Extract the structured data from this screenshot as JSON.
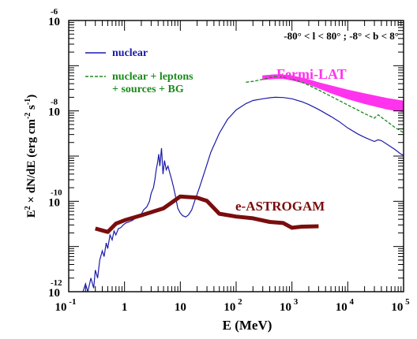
{
  "chart_data": {
    "type": "line",
    "xscale": "log",
    "yscale": "log",
    "xlim": [
      0.1,
      100000
    ],
    "ylim": [
      1e-12,
      1e-06
    ],
    "xlabel": "E (MeV)",
    "ylabel_parts": {
      "e": "E",
      "e_exp": "2",
      "mid": " × dN/dE  (erg cm",
      "exp1": "-2",
      "mid2": " s",
      "exp2": "-1",
      "close": ")"
    },
    "region_label": "-80° < l < 80° ; -8° < b < 8°",
    "x_ticks": [
      {
        "value": 0.1,
        "base": "10",
        "exp": "-1"
      },
      {
        "value": 1,
        "base": "1",
        "exp": ""
      },
      {
        "value": 10,
        "base": "10",
        "exp": ""
      },
      {
        "value": 100,
        "base": "10",
        "exp": "2"
      },
      {
        "value": 1000,
        "base": "10",
        "exp": "3"
      },
      {
        "value": 10000,
        "base": "10",
        "exp": "4"
      },
      {
        "value": 100000,
        "base": "10",
        "exp": "5"
      }
    ],
    "y_ticks": [
      {
        "value": 1e-12,
        "base": "10",
        "exp": "-12"
      },
      {
        "value": 1e-10,
        "base": "10",
        "exp": "-10"
      },
      {
        "value": 1e-08,
        "base": "10",
        "exp": "-8"
      },
      {
        "value": 1e-06,
        "base": "10",
        "exp": "-6"
      }
    ],
    "legend": [
      {
        "name": "nuclear",
        "color": "#1a1aaa",
        "style": "solid"
      },
      {
        "name_lines": [
          "nuclear + leptons",
          "+ sources + BG"
        ],
        "color": "#1a8a1a",
        "style": "dashed"
      }
    ],
    "series": [
      {
        "name": "nuclear",
        "color": "#1a1aaa",
        "points": [
          [
            0.18,
            1e-12
          ],
          [
            0.2,
            1.5e-12
          ],
          [
            0.22,
            1e-12
          ],
          [
            0.25,
            2e-12
          ],
          [
            0.28,
            1.2e-12
          ],
          [
            0.3,
            3e-12
          ],
          [
            0.33,
            2e-12
          ],
          [
            0.36,
            5e-12
          ],
          [
            0.4,
            8e-12
          ],
          [
            0.43,
            6e-12
          ],
          [
            0.47,
            1.2e-11
          ],
          [
            0.5,
            9e-12
          ],
          [
            0.55,
            1.8e-11
          ],
          [
            0.6,
            1.4e-11
          ],
          [
            0.65,
            2.2e-11
          ],
          [
            0.7,
            1.8e-11
          ],
          [
            0.78,
            2.5e-11
          ],
          [
            0.85,
            2.6e-11
          ],
          [
            0.95,
            3e-11
          ],
          [
            1.05,
            3.3e-11
          ],
          [
            1.2,
            3.5e-11
          ],
          [
            1.4,
            3.8e-11
          ],
          [
            1.6,
            4.3e-11
          ],
          [
            1.8,
            5e-11
          ],
          [
            2.0,
            5.2e-11
          ],
          [
            2.2,
            6.5e-11
          ],
          [
            2.5,
            7.5e-11
          ],
          [
            2.8,
            1e-10
          ],
          [
            3.0,
            1.5e-10
          ],
          [
            3.3,
            2e-10
          ],
          [
            3.5,
            3e-10
          ],
          [
            3.7,
            5e-10
          ],
          [
            3.9,
            7e-10
          ],
          [
            4.1,
            1.1e-09
          ],
          [
            4.3,
            6e-10
          ],
          [
            4.6,
            1.5e-09
          ],
          [
            4.9,
            4e-10
          ],
          [
            5.2,
            8e-10
          ],
          [
            5.6,
            5e-10
          ],
          [
            6.0,
            6e-10
          ],
          [
            6.4,
            4.5e-10
          ],
          [
            7.0,
            3e-10
          ],
          [
            7.6,
            2e-10
          ],
          [
            8.3,
            1.2e-10
          ],
          [
            9.0,
            7e-11
          ],
          [
            10,
            5.5e-11
          ],
          [
            11,
            4.8e-11
          ],
          [
            12.5,
            4.5e-11
          ],
          [
            14,
            5e-11
          ],
          [
            16,
            6.5e-11
          ],
          [
            18,
            1e-10
          ],
          [
            22,
            2e-10
          ],
          [
            28,
            5e-10
          ],
          [
            35,
            1.2e-09
          ],
          [
            50,
            3.2e-09
          ],
          [
            70,
            6.5e-09
          ],
          [
            100,
            1.05e-08
          ],
          [
            150,
            1.45e-08
          ],
          [
            200,
            1.7e-08
          ],
          [
            300,
            1.85e-08
          ],
          [
            400,
            1.95e-08
          ],
          [
            500,
            2e-08
          ],
          [
            700,
            1.98e-08
          ],
          [
            1000,
            1.85e-08
          ],
          [
            1500,
            1.6e-08
          ],
          [
            2000,
            1.38e-08
          ],
          [
            3000,
            1.08e-08
          ],
          [
            5000,
            7.5e-09
          ],
          [
            7000,
            5.8e-09
          ],
          [
            10000,
            4.2e-09
          ],
          [
            15000,
            3.1e-09
          ],
          [
            20000,
            2.6e-09
          ],
          [
            30000,
            2.1e-09
          ],
          [
            35000,
            2.3e-09
          ],
          [
            40000,
            2.2e-09
          ],
          [
            50000,
            1.85e-09
          ],
          [
            70000,
            1.4e-09
          ],
          [
            90000,
            1.1e-09
          ],
          [
            100000,
            1.05e-09
          ]
        ]
      },
      {
        "name": "nuclear + leptons + sources + BG",
        "color": "#1a8a1a",
        "points": [
          [
            150,
            4.3e-08
          ],
          [
            200,
            4.5e-08
          ],
          [
            300,
            5e-08
          ],
          [
            400,
            5.5e-08
          ],
          [
            500,
            5.7e-08
          ],
          [
            700,
            5.6e-08
          ],
          [
            1000,
            5.1e-08
          ],
          [
            1500,
            4.3e-08
          ],
          [
            2000,
            3.7e-08
          ],
          [
            3000,
            2.9e-08
          ],
          [
            5000,
            2.1e-08
          ],
          [
            7000,
            1.7e-08
          ],
          [
            10000,
            1.35e-08
          ],
          [
            15000,
            1.05e-08
          ],
          [
            20000,
            8.7e-09
          ],
          [
            30000,
            6.9e-09
          ],
          [
            35000,
            8.2e-09
          ],
          [
            40000,
            7.2e-09
          ],
          [
            50000,
            5.9e-09
          ],
          [
            70000,
            4.3e-09
          ],
          [
            100000,
            3.3e-09
          ]
        ]
      },
      {
        "name": "e-ASTROGAM",
        "color": "#7a0d0d",
        "points": [
          [
            0.3,
            2.5e-11
          ],
          [
            0.5,
            2.1e-11
          ],
          [
            0.7,
            3.2e-11
          ],
          [
            1,
            3.8e-11
          ],
          [
            2,
            4.9e-11
          ],
          [
            5,
            7e-11
          ],
          [
            10,
            1.28e-10
          ],
          [
            20,
            1.2e-10
          ],
          [
            30,
            1.02e-10
          ],
          [
            50,
            5.3e-11
          ],
          [
            100,
            4.6e-11
          ],
          [
            200,
            4.2e-11
          ],
          [
            400,
            3.5e-11
          ],
          [
            700,
            3.3e-11
          ],
          [
            1000,
            2.6e-11
          ],
          [
            1500,
            2.75e-11
          ],
          [
            3000,
            2.8e-11
          ]
        ]
      }
    ],
    "band": {
      "name": "Fermi-LAT",
      "color": "#ff33ee",
      "upper": [
        [
          300,
          6e-08
        ],
        [
          500,
          6.3e-08
        ],
        [
          700,
          6.2e-08
        ],
        [
          1000,
          6e-08
        ],
        [
          2000,
          4.9e-08
        ],
        [
          3000,
          4.2e-08
        ],
        [
          5000,
          3.6e-08
        ],
        [
          10000,
          2.9e-08
        ],
        [
          20000,
          2.4e-08
        ],
        [
          50000,
          1.9e-08
        ],
        [
          100000,
          1.65e-08
        ]
      ],
      "lower": [
        [
          300,
          4.9e-08
        ],
        [
          500,
          5.2e-08
        ],
        [
          700,
          5.2e-08
        ],
        [
          1000,
          4.8e-08
        ],
        [
          2000,
          3.9e-08
        ],
        [
          3000,
          3.2e-08
        ],
        [
          5000,
          2.5e-08
        ],
        [
          10000,
          1.85e-08
        ],
        [
          20000,
          1.45e-08
        ],
        [
          50000,
          1.1e-08
        ],
        [
          100000,
          9.5e-09
        ]
      ]
    },
    "annotations": [
      {
        "text": "Fermi-LAT",
        "color": "#ff33ee"
      },
      {
        "text": "e-ASTROGAM",
        "color": "#7a0d0d"
      }
    ]
  }
}
